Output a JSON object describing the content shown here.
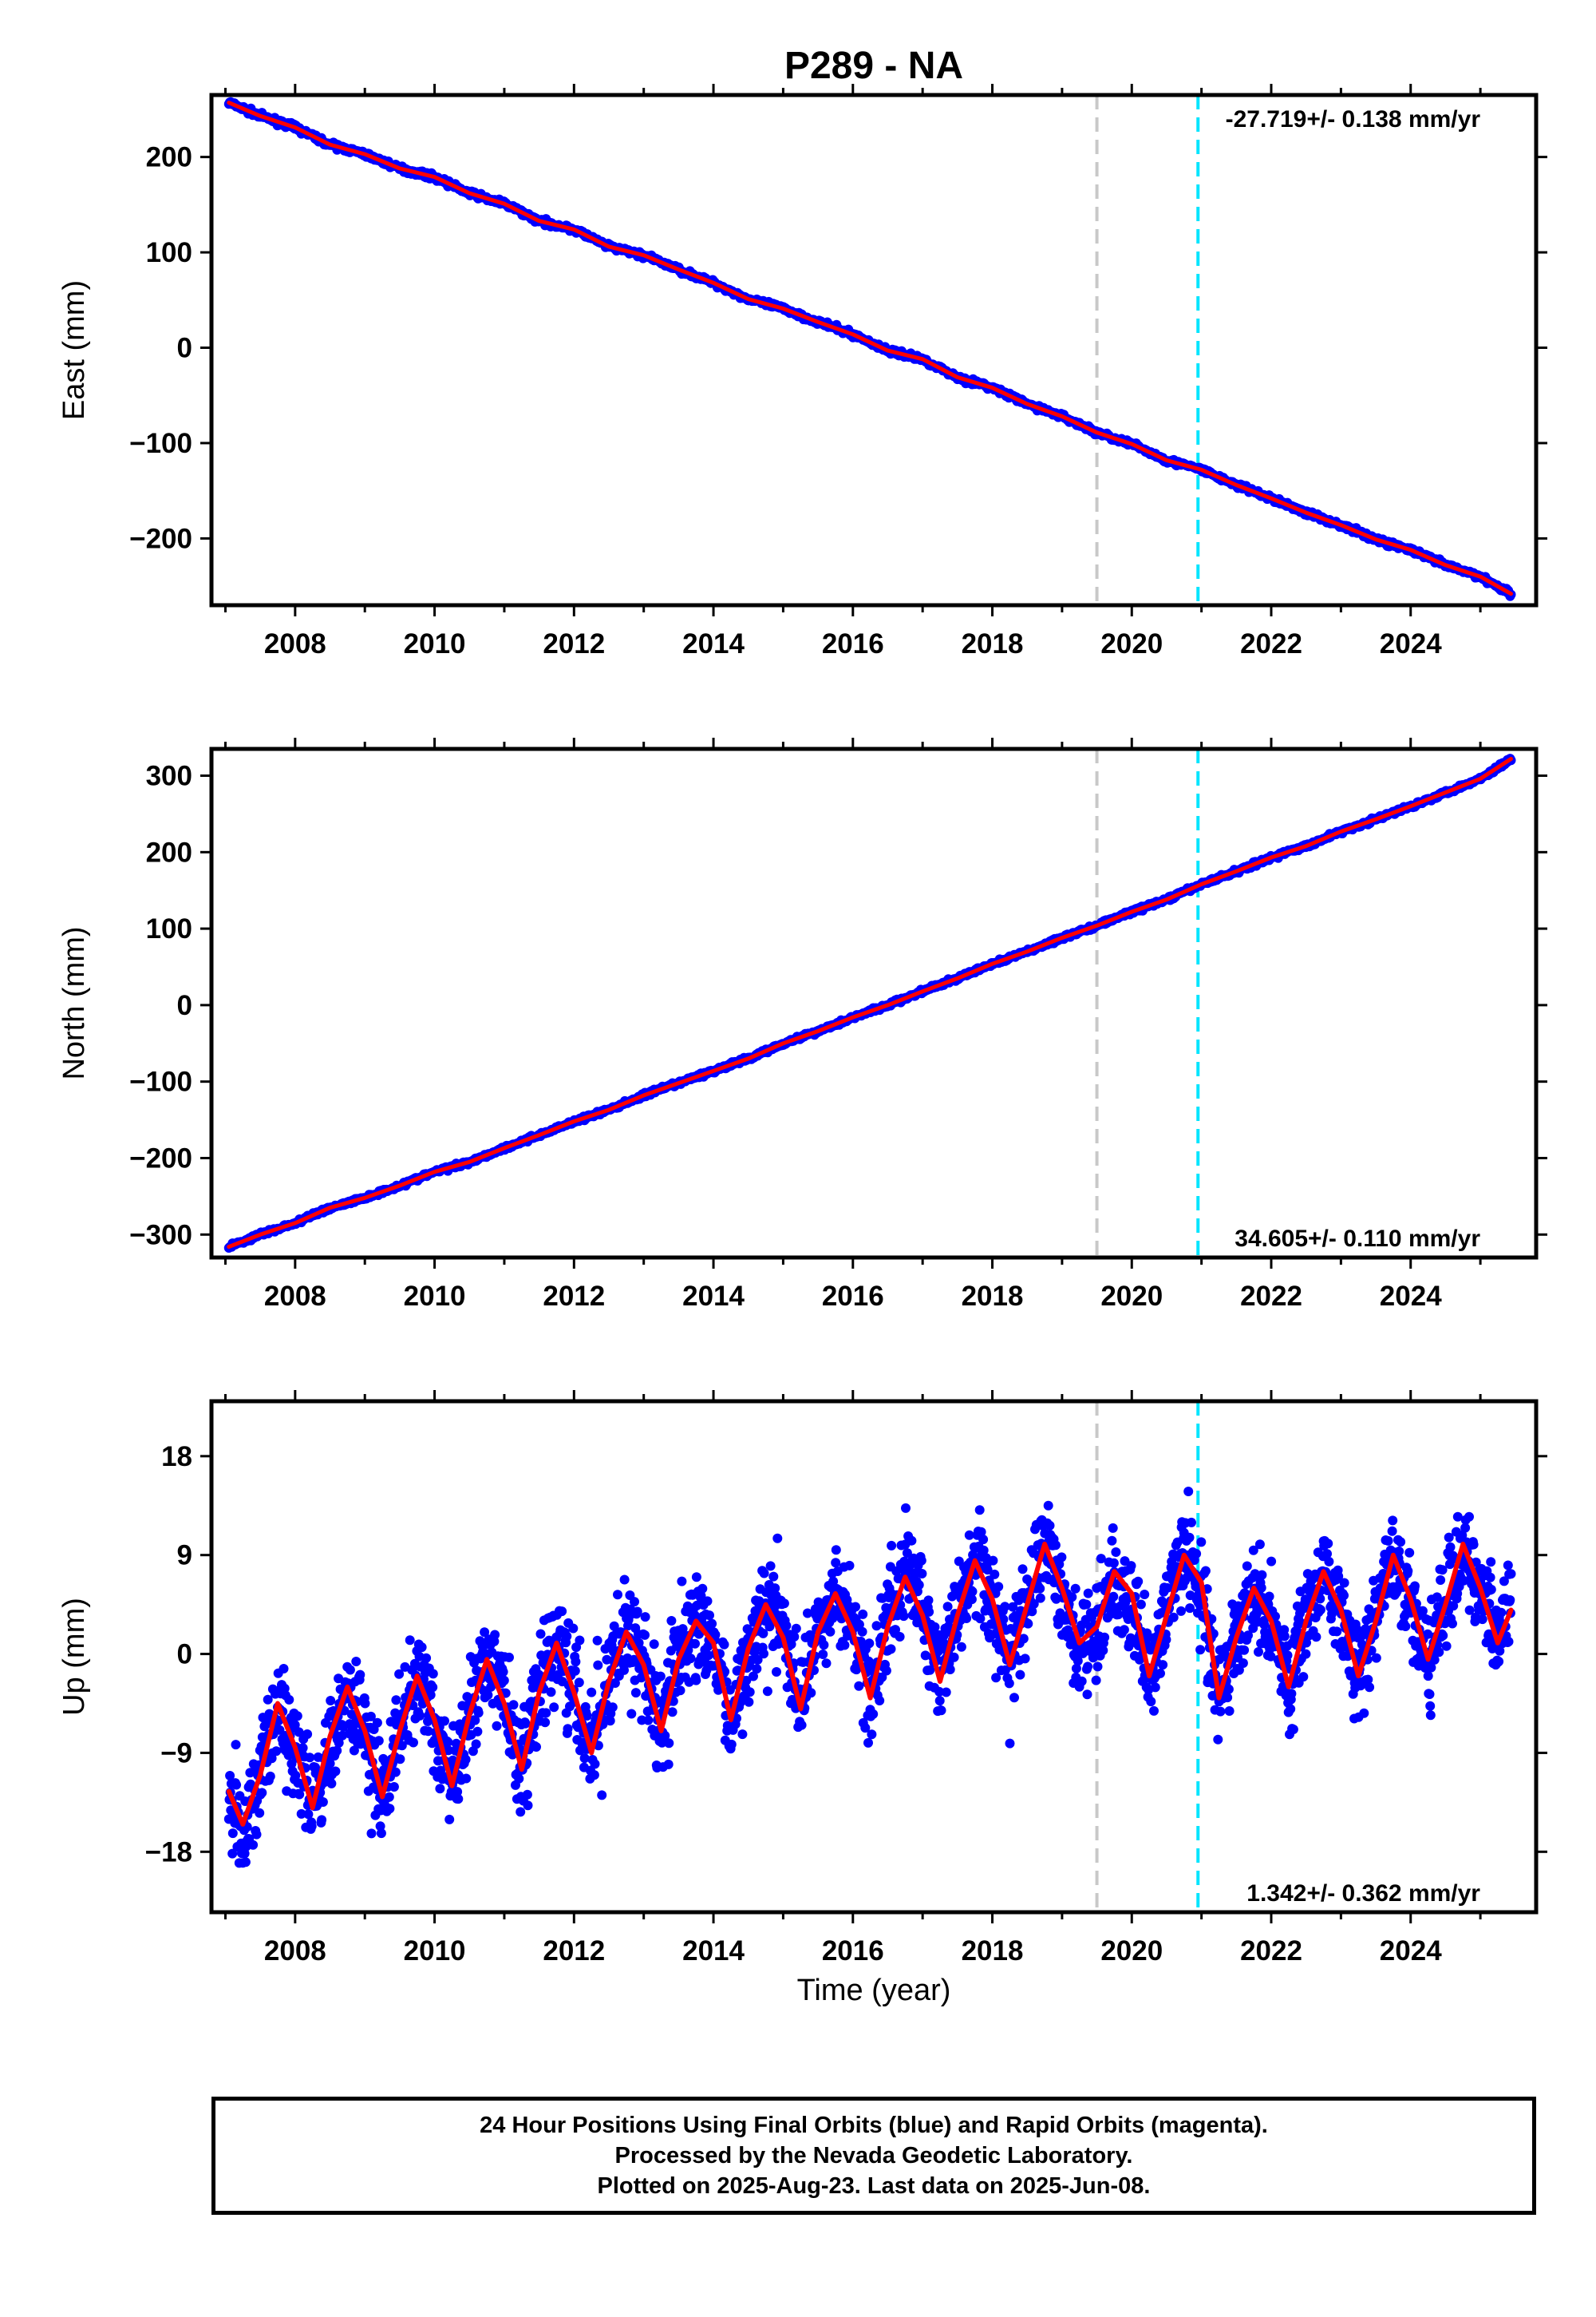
{
  "title": "P289 - NA",
  "colors": {
    "data_points": "#0000ff",
    "model_line": "#ff0000",
    "gray_marker": "#c8c8c8",
    "cyan_marker": "#00e5ff",
    "frame": "#000000"
  },
  "footer": {
    "line1": "24 Hour Positions Using Final Orbits (blue) and Rapid Orbits (magenta).",
    "line2": "Processed by the Nevada Geodetic Laboratory.",
    "line3": "Plotted on 2025-Aug-23. Last data on 2025-Jun-08."
  },
  "chart_data": [
    {
      "type": "scatter",
      "component": "east",
      "ylabel": "East (mm)",
      "rate_label": "-27.719+/- 0.138 mm/yr",
      "rate_position": "top-right",
      "xlim": [
        2006.8,
        2025.8
      ],
      "ylim": [
        -270,
        265
      ],
      "yticks": [
        200,
        100,
        0,
        -100,
        -200
      ],
      "ytick_labels": [
        "200",
        "100",
        "0",
        "−100",
        "−200"
      ],
      "xticks": [
        2008,
        2010,
        2012,
        2014,
        2016,
        2018,
        2020,
        2022,
        2024
      ],
      "xtick_labels": [
        "2008",
        "2010",
        "2012",
        "2014",
        "2016",
        "2018",
        "2020",
        "2022",
        "2024"
      ],
      "vertical_markers": [
        {
          "x": 2019.5,
          "style": "gray"
        },
        {
          "x": 2020.95,
          "style": "cyan"
        }
      ],
      "series": [
        {
          "role": "observations",
          "x": [
            2007.05,
            2007.5,
            2008.0,
            2008.5,
            2009.0,
            2009.5,
            2010.0,
            2010.5,
            2011.0,
            2011.5,
            2012.0,
            2012.5,
            2013.0,
            2013.5,
            2014.0,
            2014.5,
            2015.0,
            2015.5,
            2016.0,
            2016.5,
            2017.0,
            2017.5,
            2018.0,
            2018.5,
            2019.0,
            2019.5,
            2020.0,
            2020.5,
            2021.0,
            2021.5,
            2022.0,
            2022.5,
            2023.0,
            2023.5,
            2024.0,
            2024.5,
            2025.0,
            2025.44
          ],
          "y": [
            257,
            243,
            231,
            213,
            203,
            188,
            179,
            162,
            151,
            133,
            124,
            106,
            97,
            82,
            68,
            51,
            41,
            27,
            14,
            -3,
            -12,
            -31,
            -42,
            -59,
            -72,
            -89,
            -101,
            -118,
            -128,
            -144,
            -158,
            -173,
            -186,
            -201,
            -212,
            -228,
            -240,
            -258
          ]
        },
        {
          "role": "model",
          "x": [
            2007.05,
            2007.5,
            2008.0,
            2008.5,
            2009.0,
            2009.5,
            2010.0,
            2010.5,
            2011.0,
            2011.5,
            2012.0,
            2012.5,
            2013.0,
            2013.5,
            2014.0,
            2014.5,
            2015.0,
            2015.5,
            2016.0,
            2016.5,
            2017.0,
            2017.5,
            2018.0,
            2018.5,
            2019.0,
            2019.5,
            2020.0,
            2020.5,
            2021.0,
            2021.5,
            2022.0,
            2022.5,
            2023.0,
            2023.5,
            2024.0,
            2024.5,
            2025.0,
            2025.44
          ],
          "y": [
            257,
            243,
            231,
            213,
            203,
            188,
            179,
            162,
            151,
            133,
            124,
            106,
            97,
            82,
            68,
            51,
            41,
            27,
            14,
            -3,
            -12,
            -31,
            -42,
            -59,
            -72,
            -89,
            -101,
            -118,
            -128,
            -144,
            -158,
            -173,
            -186,
            -201,
            -212,
            -228,
            -240,
            -258
          ]
        }
      ]
    },
    {
      "type": "scatter",
      "component": "north",
      "ylabel": "North (mm)",
      "rate_label": "34.605+/- 0.110 mm/yr",
      "rate_position": "bottom-right",
      "xlim": [
        2006.8,
        2025.8
      ],
      "ylim": [
        -330,
        335
      ],
      "yticks": [
        300,
        200,
        100,
        0,
        -100,
        -200,
        -300
      ],
      "ytick_labels": [
        "300",
        "200",
        "100",
        "0",
        "−100",
        "−200",
        "−300"
      ],
      "xticks": [
        2008,
        2010,
        2012,
        2014,
        2016,
        2018,
        2020,
        2022,
        2024
      ],
      "xtick_labels": [
        "2008",
        "2010",
        "2012",
        "2014",
        "2016",
        "2018",
        "2020",
        "2022",
        "2024"
      ],
      "vertical_markers": [
        {
          "x": 2019.5,
          "style": "gray"
        },
        {
          "x": 2020.95,
          "style": "cyan"
        }
      ],
      "series": [
        {
          "role": "observations",
          "x": [
            2007.05,
            2007.5,
            2008.0,
            2008.5,
            2009.0,
            2009.5,
            2010.0,
            2010.5,
            2011.0,
            2011.5,
            2012.0,
            2012.5,
            2013.0,
            2013.5,
            2014.0,
            2014.5,
            2015.0,
            2015.5,
            2016.0,
            2016.5,
            2017.0,
            2017.5,
            2018.0,
            2018.5,
            2019.0,
            2019.5,
            2020.0,
            2020.5,
            2021.0,
            2021.5,
            2022.0,
            2022.5,
            2023.0,
            2023.5,
            2024.0,
            2024.5,
            2025.0,
            2025.44
          ],
          "y": [
            -316,
            -300,
            -285,
            -265,
            -252,
            -236,
            -218,
            -205,
            -187,
            -170,
            -152,
            -137,
            -118,
            -102,
            -86,
            -70,
            -50,
            -34,
            -16,
            0,
            18,
            35,
            54,
            70,
            88,
            104,
            122,
            138,
            158,
            175,
            193,
            208,
            227,
            243,
            260,
            278,
            296,
            322
          ]
        },
        {
          "role": "model",
          "x": [
            2007.05,
            2007.5,
            2008.0,
            2008.5,
            2009.0,
            2009.5,
            2010.0,
            2010.5,
            2011.0,
            2011.5,
            2012.0,
            2012.5,
            2013.0,
            2013.5,
            2014.0,
            2014.5,
            2015.0,
            2015.5,
            2016.0,
            2016.5,
            2017.0,
            2017.5,
            2018.0,
            2018.5,
            2019.0,
            2019.5,
            2020.0,
            2020.5,
            2021.0,
            2021.5,
            2022.0,
            2022.5,
            2023.0,
            2023.5,
            2024.0,
            2024.5,
            2025.0,
            2025.44
          ],
          "y": [
            -316,
            -300,
            -285,
            -265,
            -252,
            -236,
            -218,
            -205,
            -187,
            -170,
            -152,
            -137,
            -118,
            -102,
            -86,
            -70,
            -50,
            -34,
            -16,
            0,
            18,
            35,
            54,
            70,
            88,
            104,
            122,
            138,
            158,
            175,
            193,
            208,
            227,
            243,
            260,
            278,
            296,
            322
          ]
        }
      ]
    },
    {
      "type": "scatter",
      "component": "up",
      "ylabel": "Up (mm)",
      "xlabel": "Time (year)",
      "rate_label": "1.342+/- 0.362 mm/yr",
      "rate_position": "bottom-right",
      "xlim": [
        2006.8,
        2025.8
      ],
      "ylim": [
        -23.5,
        23
      ],
      "yticks": [
        18,
        9,
        0,
        -9,
        -18
      ],
      "ytick_labels": [
        "18",
        "9",
        "0",
        "−9",
        "−18"
      ],
      "xticks": [
        2008,
        2010,
        2012,
        2014,
        2016,
        2018,
        2020,
        2022,
        2024
      ],
      "xtick_labels": [
        "2008",
        "2010",
        "2012",
        "2014",
        "2016",
        "2018",
        "2020",
        "2022",
        "2024"
      ],
      "vertical_markers": [
        {
          "x": 2019.5,
          "style": "gray"
        },
        {
          "x": 2020.95,
          "style": "cyan"
        }
      ],
      "series": [
        {
          "role": "observations",
          "x": [
            2007.05,
            2007.25,
            2007.5,
            2007.75,
            2008.0,
            2008.25,
            2008.5,
            2008.75,
            2009.0,
            2009.25,
            2009.5,
            2009.75,
            2010.0,
            2010.25,
            2010.5,
            2010.75,
            2011.0,
            2011.25,
            2011.5,
            2011.75,
            2012.0,
            2012.25,
            2012.5,
            2012.75,
            2013.0,
            2013.25,
            2013.5,
            2013.75,
            2014.0,
            2014.25,
            2014.5,
            2014.75,
            2015.0,
            2015.25,
            2015.5,
            2015.75,
            2016.0,
            2016.25,
            2016.5,
            2016.75,
            2017.0,
            2017.25,
            2017.5,
            2017.75,
            2018.0,
            2018.25,
            2018.5,
            2018.75,
            2019.0,
            2019.25,
            2019.5,
            2019.75,
            2020.0,
            2020.25,
            2020.5,
            2020.75,
            2021.0,
            2021.25,
            2021.5,
            2021.75,
            2022.0,
            2022.25,
            2022.5,
            2022.75,
            2023.0,
            2023.25,
            2023.5,
            2023.75,
            2024.0,
            2024.25,
            2024.5,
            2024.75,
            2025.0,
            2025.25,
            2025.44
          ],
          "y": [
            -12,
            -16,
            -11,
            -5,
            -9,
            -14,
            -8,
            -3,
            -7,
            -13,
            -7,
            -2,
            -6,
            -12,
            -5,
            0,
            -4,
            -11,
            -3,
            1,
            -3,
            -9,
            -2,
            2,
            -1,
            -7,
            0,
            3,
            1,
            -6,
            1,
            5,
            2,
            -5,
            3,
            6,
            3,
            -4,
            3,
            8,
            4,
            -2,
            4,
            9,
            5,
            -1,
            5,
            10,
            6,
            1,
            3,
            7,
            5,
            -2,
            4,
            9,
            6,
            -4,
            2,
            6,
            3,
            -3,
            3,
            8,
            4,
            -2,
            3,
            9,
            5,
            -1,
            5,
            10,
            6,
            1,
            4
          ]
        },
        {
          "role": "model",
          "x": [
            2007.05,
            2007.25,
            2007.5,
            2007.75,
            2008.0,
            2008.25,
            2008.5,
            2008.75,
            2009.0,
            2009.25,
            2009.5,
            2009.75,
            2010.0,
            2010.25,
            2010.5,
            2010.75,
            2011.0,
            2011.25,
            2011.5,
            2011.75,
            2012.0,
            2012.25,
            2012.5,
            2012.75,
            2013.0,
            2013.25,
            2013.5,
            2013.75,
            2014.0,
            2014.25,
            2014.5,
            2014.75,
            2015.0,
            2015.25,
            2015.5,
            2015.75,
            2016.0,
            2016.25,
            2016.5,
            2016.75,
            2017.0,
            2017.25,
            2017.5,
            2017.75,
            2018.0,
            2018.25,
            2018.5,
            2018.75,
            2019.0,
            2019.25,
            2019.5,
            2019.75,
            2020.0,
            2020.25,
            2020.5,
            2020.75,
            2021.0,
            2021.25,
            2021.5,
            2021.75,
            2022.0,
            2022.25,
            2022.5,
            2022.75,
            2023.0,
            2023.25,
            2023.5,
            2023.75,
            2024.0,
            2024.25,
            2024.5,
            2024.75,
            2025.0,
            2025.25,
            2025.44
          ],
          "y": [
            -12.5,
            -15.5,
            -11,
            -4.5,
            -8.5,
            -14,
            -7.5,
            -3,
            -7,
            -13,
            -7,
            -2,
            -6,
            -12,
            -5.5,
            -0.5,
            -4.5,
            -10.5,
            -3.5,
            1,
            -3.5,
            -9,
            -2.5,
            2,
            -1,
            -7,
            -0.5,
            3,
            1,
            -6,
            0.5,
            4.5,
            1.5,
            -5,
            2,
            5.5,
            2,
            -4,
            2.5,
            7,
            3.5,
            -2.5,
            3.5,
            8.5,
            5,
            -1,
            4.5,
            10,
            6,
            1,
            2.5,
            7.5,
            5.5,
            -2,
            3.5,
            9,
            6.5,
            -4,
            1.5,
            6,
            3,
            -3,
            3,
            7.5,
            4,
            -2,
            3,
            9,
            5,
            -0.5,
            4.5,
            10,
            6,
            1,
            4
          ]
        }
      ]
    }
  ]
}
